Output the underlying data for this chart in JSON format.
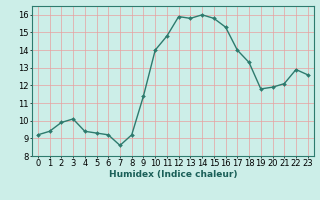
{
  "x": [
    0,
    1,
    2,
    3,
    4,
    5,
    6,
    7,
    8,
    9,
    10,
    11,
    12,
    13,
    14,
    15,
    16,
    17,
    18,
    19,
    20,
    21,
    22,
    23
  ],
  "y": [
    9.2,
    9.4,
    9.9,
    10.1,
    9.4,
    9.3,
    9.2,
    8.6,
    9.2,
    11.4,
    14.0,
    14.8,
    15.9,
    15.8,
    16.0,
    15.8,
    15.3,
    14.0,
    13.3,
    11.8,
    11.9,
    12.1,
    12.9,
    12.6
  ],
  "line_color": "#2d7b6e",
  "marker": "D",
  "marker_size": 2.0,
  "line_width": 1.0,
  "bg_color": "#cceee8",
  "grid_color_h": "#e8a0a0",
  "grid_color_v": "#e8a0a0",
  "xlabel": "Humidex (Indice chaleur)",
  "ylim": [
    8,
    16.5
  ],
  "xlim": [
    -0.5,
    23.5
  ],
  "yticks": [
    8,
    9,
    10,
    11,
    12,
    13,
    14,
    15,
    16
  ],
  "xticks": [
    0,
    1,
    2,
    3,
    4,
    5,
    6,
    7,
    8,
    9,
    10,
    11,
    12,
    13,
    14,
    15,
    16,
    17,
    18,
    19,
    20,
    21,
    22,
    23
  ],
  "xlabel_fontsize": 6.5,
  "tick_fontsize": 6.0
}
